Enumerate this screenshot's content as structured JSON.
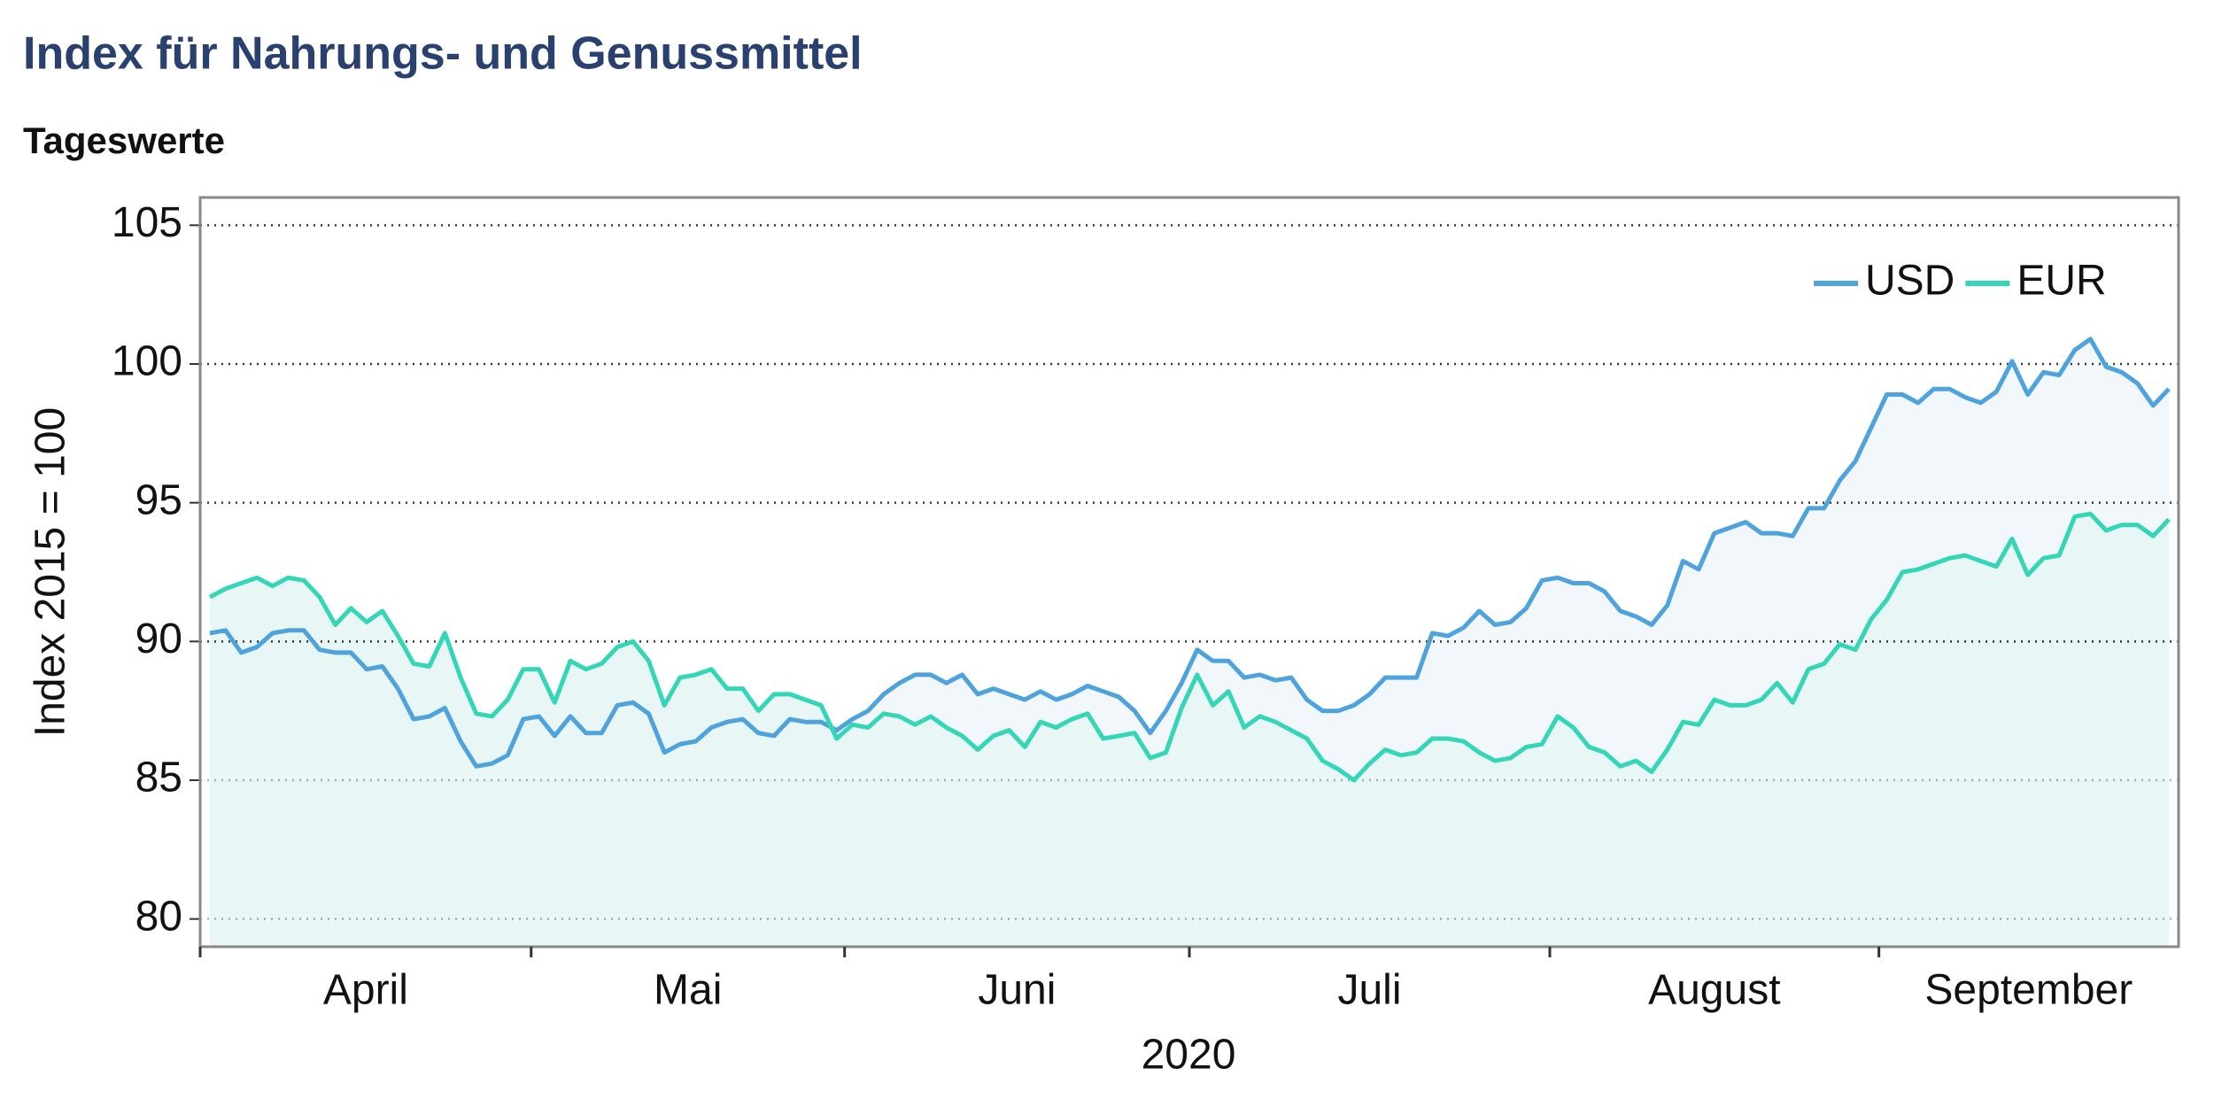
{
  "chart_data": {
    "type": "line",
    "title": "Index für Nahrungs- und Genussmittel",
    "subtitle": "Tageswerte",
    "y_label": "Index 2015 = 100",
    "x_label": "2020",
    "categories": [
      "April",
      "April",
      "April",
      "April",
      "April",
      "April",
      "April",
      "April",
      "April",
      "April",
      "April",
      "April",
      "April",
      "April",
      "April",
      "April",
      "April",
      "April",
      "April",
      "April",
      "April",
      "Mai",
      "Mai",
      "Mai",
      "Mai",
      "Mai",
      "Mai",
      "Mai",
      "Mai",
      "Mai",
      "Mai",
      "Mai",
      "Mai",
      "Mai",
      "Mai",
      "Mai",
      "Mai",
      "Mai",
      "Mai",
      "Mai",
      "Mai",
      "Juni",
      "Juni",
      "Juni",
      "Juni",
      "Juni",
      "Juni",
      "Juni",
      "Juni",
      "Juni",
      "Juni",
      "Juni",
      "Juni",
      "Juni",
      "Juni",
      "Juni",
      "Juni",
      "Juni",
      "Juni",
      "Juni",
      "Juni",
      "Juni",
      "Juni",
      "Juli",
      "Juli",
      "Juli",
      "Juli",
      "Juli",
      "Juli",
      "Juli",
      "Juli",
      "Juli",
      "Juli",
      "Juli",
      "Juli",
      "Juli",
      "Juli",
      "Juli",
      "Juli",
      "Juli",
      "Juli",
      "Juli",
      "Juli",
      "Juli",
      "Juli",
      "Juli",
      "August",
      "August",
      "August",
      "August",
      "August",
      "August",
      "August",
      "August",
      "August",
      "August",
      "August",
      "August",
      "August",
      "August",
      "August",
      "August",
      "August",
      "August",
      "August",
      "August",
      "August",
      "September",
      "September",
      "September",
      "September",
      "September",
      "September",
      "September",
      "September",
      "September",
      "September",
      "September",
      "September",
      "September",
      "September",
      "September",
      "September",
      "September",
      "September",
      "September"
    ],
    "series": [
      {
        "name": "USD",
        "color": "#4ea3dd",
        "fill": "#f2f7fb",
        "values": [
          90.3,
          90.4,
          89.6,
          89.8,
          90.3,
          90.4,
          90.4,
          89.7,
          89.6,
          89.6,
          89.0,
          89.1,
          88.3,
          87.2,
          87.3,
          87.6,
          86.4,
          85.5,
          85.6,
          85.9,
          87.2,
          87.3,
          86.6,
          87.3,
          86.7,
          86.7,
          87.7,
          87.8,
          87.4,
          86.0,
          86.3,
          86.4,
          86.9,
          87.1,
          87.2,
          86.7,
          86.6,
          87.2,
          87.1,
          87.1,
          86.8,
          87.2,
          87.5,
          88.1,
          88.5,
          88.8,
          88.8,
          88.5,
          88.8,
          88.1,
          88.3,
          88.1,
          87.9,
          88.2,
          87.9,
          88.1,
          88.4,
          88.2,
          88.0,
          87.5,
          86.7,
          87.5,
          88.5,
          89.7,
          89.3,
          89.3,
          88.7,
          88.8,
          88.6,
          88.7,
          87.9,
          87.5,
          87.5,
          87.7,
          88.1,
          88.7,
          88.7,
          88.7,
          90.3,
          90.2,
          90.5,
          91.1,
          90.6,
          90.7,
          91.2,
          92.2,
          92.3,
          92.1,
          92.1,
          91.8,
          91.1,
          90.9,
          90.6,
          91.3,
          92.9,
          92.6,
          93.9,
          94.1,
          94.3,
          93.9,
          93.9,
          93.8,
          94.8,
          94.8,
          95.8,
          96.5,
          97.7,
          98.9,
          98.9,
          98.6,
          99.1,
          99.1,
          98.8,
          98.6,
          99.0,
          100.1,
          98.9,
          99.7,
          99.6,
          100.5,
          100.9,
          99.9,
          99.7,
          99.3,
          98.5,
          99.1
        ]
      },
      {
        "name": "EUR",
        "color": "#35d6b8",
        "fill": "#e8f6f5",
        "values": [
          91.6,
          91.9,
          92.1,
          92.3,
          92.0,
          92.3,
          92.2,
          91.6,
          90.6,
          91.2,
          90.7,
          91.1,
          90.2,
          89.2,
          89.1,
          90.3,
          88.7,
          87.4,
          87.3,
          87.9,
          89.0,
          89.0,
          87.8,
          89.3,
          89.0,
          89.2,
          89.8,
          90.0,
          89.3,
          87.7,
          88.7,
          88.8,
          89.0,
          88.3,
          88.3,
          87.5,
          88.1,
          88.1,
          87.9,
          87.7,
          86.5,
          87.0,
          86.9,
          87.4,
          87.3,
          87.0,
          87.3,
          86.9,
          86.6,
          86.1,
          86.6,
          86.8,
          86.2,
          87.1,
          86.9,
          87.2,
          87.4,
          86.5,
          86.6,
          86.7,
          85.8,
          86.0,
          87.6,
          88.8,
          87.7,
          88.2,
          86.9,
          87.3,
          87.1,
          86.8,
          86.5,
          85.7,
          85.4,
          85.0,
          85.6,
          86.1,
          85.9,
          86.0,
          86.5,
          86.5,
          86.4,
          86.0,
          85.7,
          85.8,
          86.2,
          86.3,
          87.3,
          86.9,
          86.2,
          86.0,
          85.5,
          85.7,
          85.3,
          86.1,
          87.1,
          87.0,
          87.9,
          87.7,
          87.7,
          87.9,
          88.5,
          87.8,
          89.0,
          89.2,
          89.9,
          89.7,
          90.8,
          91.5,
          92.5,
          92.6,
          92.8,
          93.0,
          93.1,
          92.9,
          92.7,
          93.7,
          92.4,
          93.0,
          93.1,
          94.5,
          94.6,
          94.0,
          94.2,
          94.2,
          93.8,
          94.4
        ]
      }
    ],
    "ylim": [
      79,
      106
    ],
    "yticks": [
      80,
      85,
      90,
      95,
      100,
      105
    ],
    "grid": true,
    "legend": "upper right"
  }
}
